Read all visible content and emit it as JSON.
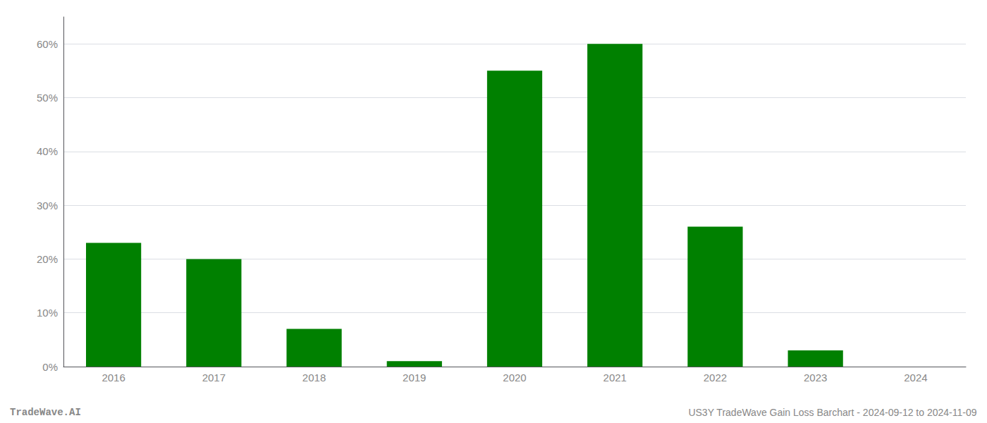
{
  "chart_data": {
    "type": "bar",
    "categories": [
      "2016",
      "2017",
      "2018",
      "2019",
      "2020",
      "2021",
      "2022",
      "2023",
      "2024"
    ],
    "values": [
      0.23,
      0.2,
      0.07,
      0.01,
      0.55,
      0.6,
      0.26,
      0.03,
      0.0
    ],
    "color": "#008000",
    "ylim": [
      0,
      0.65
    ],
    "yticks": [
      {
        "value": 0.0,
        "label": "0%"
      },
      {
        "value": 0.1,
        "label": "10%"
      },
      {
        "value": 0.2,
        "label": "20%"
      },
      {
        "value": 0.3,
        "label": "30%"
      },
      {
        "value": 0.4,
        "label": "40%"
      },
      {
        "value": 0.5,
        "label": "50%"
      },
      {
        "value": 0.6,
        "label": "60%"
      }
    ],
    "grid": true,
    "annotations": [
      "TradeWave.AI",
      "US3Y TradeWave Gain Loss Barchart - 2024-09-12 to 2024-11-09"
    ]
  }
}
